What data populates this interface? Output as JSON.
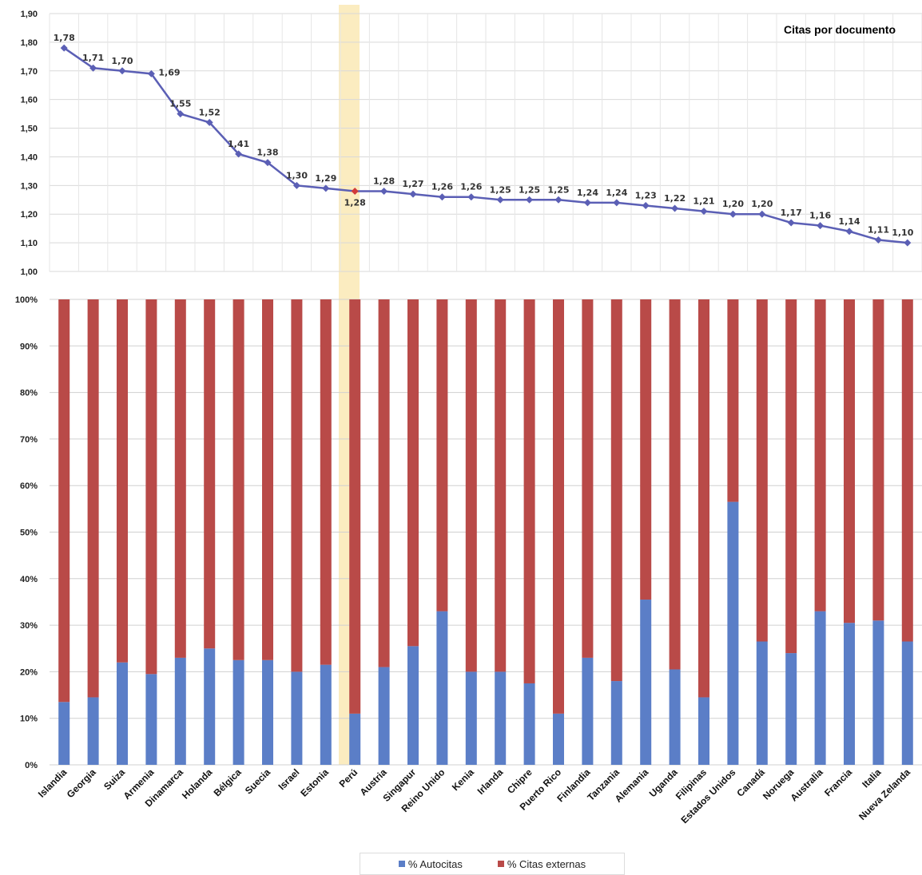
{
  "chart_data": [
    {
      "type": "line",
      "title": "Citas por documento",
      "categories": [
        "Islandia",
        "Georgia",
        "Suiza",
        "Armenia",
        "Dinamarca",
        "Holanda",
        "Bélgica",
        "Suecia",
        "Israel",
        "Estonia",
        "Perú",
        "Austria",
        "Singapur",
        "Reino Unido",
        "Kenia",
        "Irlanda",
        "Chipre",
        "Puerto Rico",
        "Finlandia",
        "Tanzania",
        "Alemania",
        "Uganda",
        "Filipinas",
        "Estados Unidos",
        "Canadá",
        "Noruega",
        "Australia",
        "Francia",
        "Italia",
        "Nueva Zelanda"
      ],
      "values": [
        1.78,
        1.71,
        1.7,
        1.69,
        1.55,
        1.52,
        1.41,
        1.38,
        1.3,
        1.29,
        1.28,
        1.28,
        1.27,
        1.26,
        1.26,
        1.25,
        1.25,
        1.25,
        1.24,
        1.24,
        1.23,
        1.22,
        1.21,
        1.2,
        1.2,
        1.17,
        1.16,
        1.14,
        1.11,
        1.1
      ],
      "value_labels": [
        "1,78",
        "1,71",
        "1,70",
        "1,69",
        "1,55",
        "1,52",
        "1,41",
        "1,38",
        "1,30",
        "1,29",
        "1,28",
        "1,28",
        "1,27",
        "1,26",
        "1,26",
        "1,25",
        "1,25",
        "1,25",
        "1,24",
        "1,24",
        "1,23",
        "1,22",
        "1,21",
        "1,20",
        "1,20",
        "1,17",
        "1,16",
        "1,14",
        "1,11",
        "1,10"
      ],
      "ylim": [
        1.0,
        1.9
      ],
      "y_ticks": [
        1.0,
        1.1,
        1.2,
        1.3,
        1.4,
        1.5,
        1.6,
        1.7,
        1.8,
        1.9
      ],
      "y_tick_labels": [
        "1,00",
        "1,10",
        "1,20",
        "1,30",
        "1,40",
        "1,50",
        "1,60",
        "1,70",
        "1,80",
        "1,90"
      ],
      "grid": true,
      "highlight_category": "Perú",
      "colors": {
        "line": "#5b5fb5",
        "highlight_point": "#d13a3a",
        "highlight_band": "#fbecc0"
      }
    },
    {
      "type": "bar",
      "stacked": true,
      "categories": [
        "Islandia",
        "Georgia",
        "Suiza",
        "Armenia",
        "Dinamarca",
        "Holanda",
        "Bélgica",
        "Suecia",
        "Israel",
        "Estonia",
        "Perú",
        "Austria",
        "Singapur",
        "Reino Unido",
        "Kenia",
        "Irlanda",
        "Chipre",
        "Puerto Rico",
        "Finlandia",
        "Tanzania",
        "Alemania",
        "Uganda",
        "Filipinas",
        "Estados Unidos",
        "Canadá",
        "Noruega",
        "Australia",
        "Francia",
        "Italia",
        "Nueva Zelanda"
      ],
      "series": [
        {
          "name": "% Autocitas",
          "color": "#5b7ec7",
          "values": [
            13.5,
            14.5,
            22,
            19.5,
            23,
            25,
            22.5,
            22.5,
            20,
            21.5,
            11,
            21,
            25.5,
            33,
            20,
            20,
            17.5,
            11,
            23,
            18,
            35.5,
            20.5,
            14.5,
            56.5,
            26.5,
            24,
            33,
            30.5,
            31,
            26.5
          ]
        },
        {
          "name": "% Citas externas",
          "color": "#b94a48",
          "values": [
            86.5,
            85.5,
            78,
            80.5,
            77,
            75,
            77.5,
            77.5,
            80,
            78.5,
            89,
            79,
            74.5,
            67,
            80,
            80,
            82.5,
            89,
            77,
            82,
            64.5,
            79.5,
            85.5,
            43.5,
            73.5,
            76,
            67,
            69.5,
            69,
            73.5
          ]
        }
      ],
      "ylim": [
        0,
        100
      ],
      "y_ticks": [
        0,
        10,
        20,
        30,
        40,
        50,
        60,
        70,
        80,
        90,
        100
      ],
      "y_tick_labels": [
        "0%",
        "10%",
        "20%",
        "30%",
        "40%",
        "50%",
        "60%",
        "70%",
        "80%",
        "90%",
        "100%"
      ],
      "grid": true,
      "legend": "bottom",
      "legend_labels": [
        "% Autocitas",
        "% Citas externas"
      ]
    }
  ]
}
